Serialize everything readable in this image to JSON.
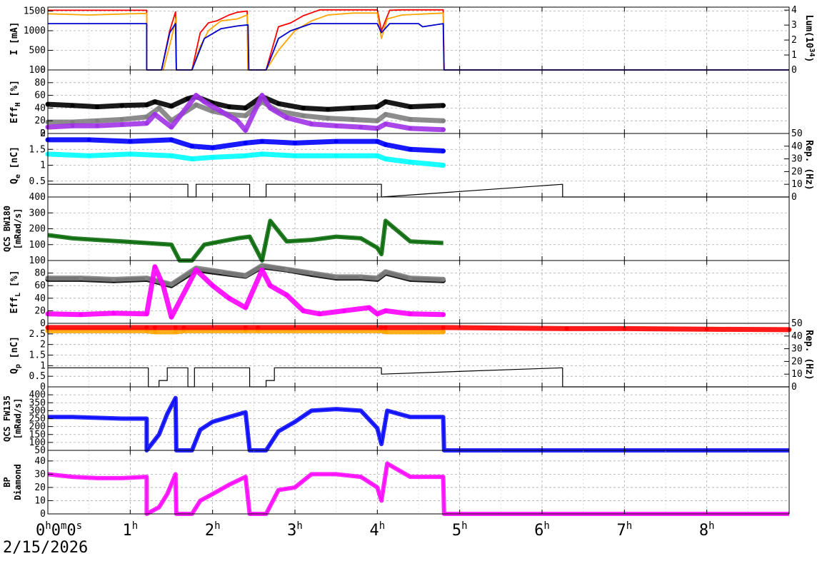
{
  "date_label": "2/15/2026",
  "chart_data": [
    {
      "type": "line",
      "id": "beam-current",
      "ylabel": "I [mA]",
      "ylabel_right": "Lum(10",
      "ylabel_right_sup": "34",
      "ylabel_right_tail": ")",
      "ylim": [
        0,
        1600
      ],
      "yticks": [
        0,
        500,
        1000,
        1500
      ],
      "ylim_right": [
        0,
        4.2
      ],
      "yticks_right": [
        0,
        1,
        2,
        3,
        4
      ],
      "grid": true,
      "series": [
        {
          "color": "#ff0000",
          "x": [
            0,
            1.2,
            1.2,
            1.38,
            1.48,
            1.55,
            1.56,
            1.75,
            1.85,
            1.95,
            2.05,
            2.2,
            2.3,
            2.42,
            2.43,
            2.65,
            2.8,
            2.95,
            3.1,
            3.3,
            3.6,
            4.0,
            4.05,
            4.15,
            4.3,
            4.8,
            4.81,
            9.0
          ],
          "y": [
            1520,
            1520,
            0,
            0,
            1000,
            1480,
            0,
            0,
            950,
            1200,
            1250,
            1400,
            1470,
            1500,
            0,
            0,
            1100,
            1200,
            1380,
            1530,
            1530,
            1530,
            1000,
            1520,
            1530,
            1530,
            0,
            0
          ]
        },
        {
          "color": "#ffa500",
          "x": [
            0,
            0.5,
            1.0,
            1.2,
            1.2,
            1.4,
            1.5,
            1.56,
            1.56,
            1.75,
            1.85,
            1.95,
            2.1,
            2.3,
            2.42,
            2.43,
            2.65,
            2.8,
            3.0,
            3.2,
            3.4,
            3.7,
            4.0,
            4.05,
            4.12,
            4.3,
            4.8,
            4.81,
            9.0
          ],
          "y": [
            1430,
            1400,
            1430,
            1440,
            0,
            0,
            800,
            1350,
            0,
            0,
            600,
            1000,
            1250,
            1300,
            1400,
            0,
            0,
            500,
            1000,
            1250,
            1400,
            1450,
            1450,
            800,
            1300,
            1400,
            1450,
            0,
            0
          ]
        },
        {
          "color": "#0000cc",
          "x": [
            0,
            1.2,
            1.2,
            1.38,
            1.48,
            1.55,
            1.56,
            1.75,
            1.9,
            2.1,
            2.3,
            2.43,
            2.44,
            2.65,
            2.8,
            2.95,
            3.2,
            3.5,
            4.0,
            4.05,
            4.15,
            4.5,
            4.55,
            4.8,
            4.81,
            9.0
          ],
          "y": [
            1180,
            1180,
            0,
            0,
            950,
            1180,
            0,
            0,
            800,
            1050,
            1120,
            1150,
            0,
            0,
            800,
            1000,
            1180,
            1180,
            1180,
            950,
            1180,
            1180,
            1100,
            1180,
            0,
            0
          ]
        }
      ]
    },
    {
      "type": "scatter",
      "id": "eff-her",
      "ylabel": "Eff",
      "ylabel_sub": "H",
      "ylabel_tail": " [%]",
      "ylim": [
        0,
        100
      ],
      "yticks": [
        0,
        20,
        40,
        60,
        80,
        100
      ],
      "grid": true,
      "series": [
        {
          "color": "#000000",
          "x": [
            0,
            0.3,
            0.6,
            0.9,
            1.2,
            1.3,
            1.5,
            1.7,
            1.8,
            2.0,
            2.2,
            2.4,
            2.6,
            2.8,
            3.1,
            3.4,
            3.7,
            4.0,
            4.1,
            4.4,
            4.8
          ],
          "y": [
            46,
            44,
            42,
            44,
            45,
            50,
            43,
            55,
            58,
            48,
            42,
            40,
            58,
            47,
            40,
            38,
            40,
            42,
            50,
            42,
            44
          ]
        },
        {
          "color": "#808080",
          "x": [
            0,
            0.3,
            0.6,
            0.9,
            1.2,
            1.35,
            1.5,
            1.8,
            2.0,
            2.2,
            2.4,
            2.6,
            2.8,
            3.1,
            3.4,
            3.7,
            4.0,
            4.1,
            4.4,
            4.8
          ],
          "y": [
            18,
            18,
            20,
            22,
            26,
            40,
            20,
            45,
            35,
            30,
            28,
            50,
            35,
            28,
            24,
            22,
            20,
            30,
            22,
            20
          ]
        },
        {
          "color": "#a033e6",
          "x": [
            0,
            0.3,
            0.6,
            0.9,
            1.2,
            1.3,
            1.5,
            1.8,
            1.9,
            2.1,
            2.3,
            2.4,
            2.6,
            2.7,
            2.9,
            3.2,
            3.5,
            3.8,
            4.0,
            4.1,
            4.4,
            4.8
          ],
          "y": [
            10,
            12,
            12,
            14,
            16,
            30,
            10,
            60,
            50,
            35,
            20,
            5,
            60,
            40,
            25,
            15,
            12,
            10,
            8,
            15,
            8,
            6
          ]
        }
      ]
    },
    {
      "type": "scatter",
      "id": "charge-e",
      "ylabel": "Q",
      "ylabel_sub": "e",
      "ylabel_tail": " [nC]",
      "ylim": [
        0,
        2
      ],
      "yticks": [
        0.5,
        1,
        1.5,
        2
      ],
      "ylabel_right": "Rep. (Hz)",
      "ylim_right": [
        0,
        50
      ],
      "yticks_right": [
        0,
        10,
        20,
        30,
        40,
        50
      ],
      "grid": true,
      "series": [
        {
          "color": "#0000ff",
          "x": [
            0,
            0.5,
            1.0,
            1.5,
            1.75,
            2.0,
            2.4,
            2.6,
            3.0,
            3.5,
            4.0,
            4.1,
            4.4,
            4.8
          ],
          "y": [
            1.8,
            1.8,
            1.75,
            1.8,
            1.6,
            1.55,
            1.7,
            1.75,
            1.7,
            1.75,
            1.75,
            1.65,
            1.5,
            1.45
          ]
        },
        {
          "color": "#00ffff",
          "x": [
            0,
            0.5,
            1.0,
            1.5,
            1.75,
            2.0,
            2.4,
            2.6,
            3.0,
            3.5,
            4.0,
            4.1,
            4.4,
            4.8
          ],
          "y": [
            1.35,
            1.3,
            1.35,
            1.3,
            1.2,
            1.25,
            1.3,
            1.35,
            1.3,
            1.3,
            1.3,
            1.2,
            1.1,
            1.0
          ]
        },
        {
          "color": "#000000",
          "axis": "right",
          "x": [
            0,
            1.7,
            1.7,
            1.8,
            1.8,
            2.45,
            2.45,
            2.65,
            2.65,
            4.05,
            4.05,
            6.25,
            6.25,
            9.0
          ],
          "y": [
            10,
            10,
            0,
            0,
            10,
            10,
            0,
            0,
            10,
            10,
            0,
            10,
            0,
            0
          ]
        }
      ]
    },
    {
      "type": "line",
      "id": "qcs-bw180",
      "ylabel": "QCS BW180",
      "ylabel2": "[mRad/s]",
      "ylim": [
        0,
        400
      ],
      "yticks": [
        100,
        200,
        300,
        400
      ],
      "grid": true,
      "series": [
        {
          "color": "#006400",
          "x": [
            0,
            0.3,
            0.6,
            0.9,
            1.2,
            1.5,
            1.6,
            1.75,
            1.9,
            2.1,
            2.3,
            2.45,
            2.6,
            2.7,
            2.9,
            3.2,
            3.5,
            3.8,
            4.0,
            4.05,
            4.1,
            4.4,
            4.8
          ],
          "y": [
            160,
            140,
            130,
            120,
            110,
            100,
            0,
            0,
            100,
            120,
            140,
            150,
            0,
            250,
            120,
            130,
            150,
            140,
            80,
            40,
            250,
            120,
            110
          ]
        }
      ]
    },
    {
      "type": "scatter",
      "id": "eff-ler",
      "ylabel": "Eff",
      "ylabel_sub": "L",
      "ylabel_tail": " [%]",
      "ylim": [
        0,
        100
      ],
      "yticks": [
        0,
        20,
        40,
        60,
        80,
        100
      ],
      "grid": true,
      "series": [
        {
          "color": "#000000",
          "x": [
            0,
            0.4,
            0.8,
            1.2,
            1.5,
            1.8,
            2.1,
            2.4,
            2.6,
            2.9,
            3.2,
            3.5,
            3.8,
            4.0,
            4.1,
            4.4,
            4.8
          ],
          "y": [
            70,
            70,
            68,
            70,
            60,
            85,
            80,
            75,
            90,
            85,
            78,
            72,
            72,
            70,
            80,
            70,
            68
          ]
        },
        {
          "color": "#808080",
          "x": [
            0,
            0.4,
            0.8,
            1.2,
            1.5,
            1.8,
            2.1,
            2.4,
            2.6,
            2.9,
            3.2,
            3.5,
            3.8,
            4.0,
            4.1,
            4.4,
            4.8
          ],
          "y": [
            72,
            72,
            70,
            72,
            62,
            88,
            82,
            76,
            92,
            86,
            80,
            74,
            74,
            72,
            82,
            72,
            70
          ]
        },
        {
          "color": "#ff00ff",
          "x": [
            0,
            0.4,
            0.8,
            1.2,
            1.3,
            1.4,
            1.5,
            1.8,
            2.0,
            2.2,
            2.4,
            2.6,
            2.7,
            2.9,
            3.1,
            3.3,
            3.6,
            3.9,
            4.0,
            4.1,
            4.4,
            4.8
          ],
          "y": [
            15,
            14,
            16,
            15,
            90,
            60,
            10,
            85,
            60,
            40,
            25,
            85,
            60,
            45,
            20,
            15,
            20,
            25,
            15,
            20,
            15,
            14
          ]
        }
      ]
    },
    {
      "type": "scatter",
      "id": "charge-p",
      "ylabel": "Q",
      "ylabel_sub": "p",
      "ylabel_tail": " [nC]",
      "ylim": [
        0,
        3
      ],
      "yticks": [
        0,
        0.5,
        1,
        1.5,
        2,
        2.5
      ],
      "ylabel_right": "Rep. (Hz)",
      "ylim_right": [
        0,
        50
      ],
      "yticks_right": [
        0,
        10,
        20,
        30,
        40,
        50
      ],
      "grid": true,
      "series": [
        {
          "color": "#ffa500",
          "x": [
            0,
            1.2,
            1.3,
            1.55,
            1.65,
            2.4,
            2.55,
            4.05,
            4.1,
            4.8
          ],
          "y": [
            2.65,
            2.65,
            2.6,
            2.6,
            2.65,
            2.65,
            2.65,
            2.65,
            2.6,
            2.6
          ]
        },
        {
          "color": "#ff0000",
          "x": [
            0,
            1.2,
            1.3,
            1.55,
            1.65,
            2.4,
            2.55,
            4.05,
            4.1,
            4.8,
            6.3,
            7.0,
            8.0,
            9.0
          ],
          "y": [
            2.8,
            2.8,
            2.8,
            2.8,
            2.8,
            2.8,
            2.8,
            2.8,
            2.8,
            2.8,
            2.75,
            2.75,
            2.72,
            2.7
          ]
        },
        {
          "color": "#000000",
          "axis": "right",
          "x": [
            0,
            1.22,
            1.22,
            1.35,
            1.35,
            1.45,
            1.45,
            1.7,
            1.7,
            1.78,
            1.78,
            2.45,
            2.45,
            2.65,
            2.65,
            2.75,
            2.75,
            4.05,
            4.05,
            6.25,
            6.25,
            9.0
          ],
          "y": [
            15,
            15,
            0,
            0,
            5,
            5,
            15,
            15,
            0,
            0,
            15,
            15,
            0,
            0,
            5,
            5,
            15,
            15,
            10,
            15,
            0,
            0
          ]
        }
      ]
    },
    {
      "type": "line",
      "id": "qcs-fw135",
      "ylabel": "QCS FW135",
      "ylabel2": "[mRad/s]",
      "ylim": [
        50,
        450
      ],
      "yticks": [
        50,
        100,
        150,
        200,
        250,
        300,
        350,
        400
      ],
      "grid": true,
      "series": [
        {
          "color": "#0000ff",
          "x": [
            0,
            0.3,
            0.6,
            0.9,
            1.2,
            1.2,
            1.35,
            1.45,
            1.55,
            1.56,
            1.75,
            1.85,
            2.0,
            2.2,
            2.4,
            2.45,
            2.65,
            2.8,
            3.0,
            3.2,
            3.5,
            3.8,
            4.0,
            4.05,
            4.12,
            4.4,
            4.8,
            4.81,
            9.0
          ],
          "y": [
            260,
            260,
            255,
            250,
            250,
            50,
            150,
            280,
            380,
            50,
            50,
            180,
            230,
            260,
            290,
            50,
            50,
            170,
            230,
            300,
            310,
            300,
            190,
            90,
            300,
            260,
            260,
            50,
            50
          ]
        }
      ]
    },
    {
      "type": "line",
      "id": "bp-diamond",
      "ylabel": "BP",
      "ylabel2": "Diamond",
      "ylim": [
        0,
        48
      ],
      "yticks": [
        0,
        10,
        20,
        30,
        40
      ],
      "grid": true,
      "series": [
        {
          "color": "#ff00ff",
          "x": [
            0,
            0.3,
            0.6,
            0.9,
            1.2,
            1.2,
            1.35,
            1.45,
            1.55,
            1.56,
            1.75,
            1.85,
            2.0,
            2.2,
            2.4,
            2.45,
            2.65,
            2.8,
            3.0,
            3.2,
            3.5,
            3.8,
            4.0,
            4.05,
            4.12,
            4.4,
            4.8,
            4.81,
            9.0
          ],
          "y": [
            30,
            28,
            27,
            27,
            28,
            0,
            5,
            15,
            30,
            0,
            0,
            10,
            15,
            22,
            28,
            0,
            0,
            18,
            20,
            30,
            30,
            28,
            20,
            10,
            38,
            28,
            28,
            0,
            0
          ]
        }
      ]
    }
  ],
  "x_axis": {
    "xlim": [
      0,
      9.0
    ],
    "ticks": [
      {
        "value": 0,
        "label": "0",
        "sup": "h",
        "extra": "0",
        "extra_sup": "m",
        "extra2": "0",
        "extra2_sup": "s"
      },
      {
        "value": 1,
        "label": "1",
        "sup": "h"
      },
      {
        "value": 2,
        "label": "2",
        "sup": "h"
      },
      {
        "value": 3,
        "label": "3",
        "sup": "h"
      },
      {
        "value": 4,
        "label": "4",
        "sup": "h"
      },
      {
        "value": 5,
        "label": "5",
        "sup": "h"
      },
      {
        "value": 6,
        "label": "6",
        "sup": "h"
      },
      {
        "value": 7,
        "label": "7",
        "sup": "h"
      },
      {
        "value": 8,
        "label": "8",
        "sup": "h"
      }
    ]
  }
}
